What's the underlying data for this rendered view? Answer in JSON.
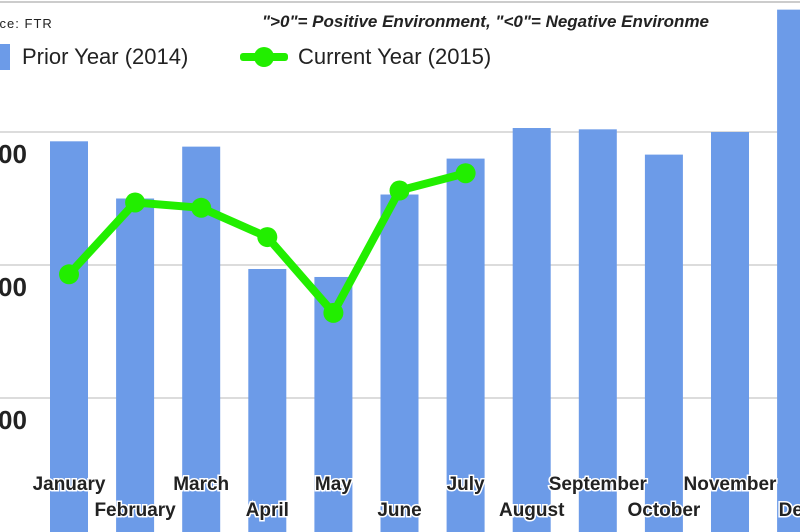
{
  "chart_data": {
    "type": "bar",
    "source": "urce: FTR",
    "annotation": "\">0\"= Positive Environment, \"<0\"= Negative Environme",
    "categories": [
      "January",
      "February",
      "March",
      "April",
      "May",
      "June",
      "July",
      "August",
      "September",
      "October",
      "November",
      "December"
    ],
    "category_labels_visible": [
      "January",
      "February",
      "March",
      "April",
      "May",
      "June",
      "July",
      "August",
      "September",
      "October",
      "November",
      "Dec"
    ],
    "series": [
      {
        "name": "Prior Year (2014)",
        "type": "bar",
        "color": "#6c9be8",
        "values": [
          2.93,
          2.5,
          2.89,
          1.97,
          1.91,
          2.53,
          2.8,
          3.03,
          3.02,
          2.83,
          3.0,
          3.92
        ]
      },
      {
        "name": "Current Year (2015)",
        "type": "line",
        "color": "#22ee00",
        "values": [
          1.93,
          2.47,
          2.43,
          2.21,
          1.64,
          2.56,
          2.69,
          null,
          null,
          null,
          null,
          null
        ]
      }
    ],
    "yticks": [
      1,
      2,
      3
    ],
    "ytick_labels": [
      "00",
      "00",
      "00"
    ],
    "ylim": [
      0,
      4
    ],
    "grid": true,
    "legend": "top-left"
  }
}
